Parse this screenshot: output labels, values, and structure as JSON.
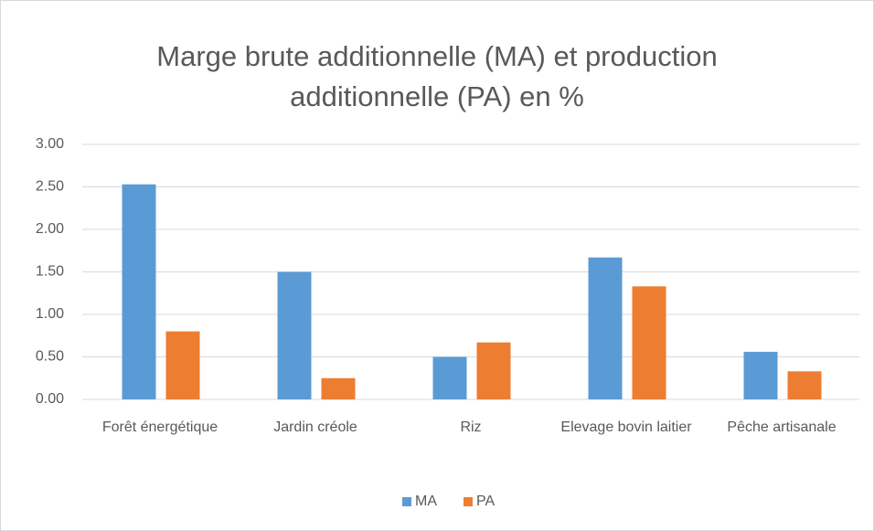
{
  "chart_data": {
    "type": "bar",
    "title": "Marge brute additionnelle (MA) et production additionnelle (PA) en %",
    "categories": [
      "Forêt énergétique",
      "Jardin créole",
      "Riz",
      "Elevage bovin laitier",
      "Pêche artisanale"
    ],
    "series": [
      {
        "name": "MA",
        "color": "#5b9bd5",
        "values": [
          2.53,
          1.5,
          0.5,
          1.67,
          0.56
        ]
      },
      {
        "name": "PA",
        "color": "#ed7d31",
        "values": [
          0.8,
          0.25,
          0.67,
          1.33,
          0.33
        ]
      }
    ],
    "ylim": [
      0,
      3
    ],
    "yticks": [
      {
        "value": 0,
        "label": "0.00"
      },
      {
        "value": 0.5,
        "label": "0.50"
      },
      {
        "value": 1,
        "label": "1.00"
      },
      {
        "value": 1.5,
        "label": "1.50"
      },
      {
        "value": 2,
        "label": "2.00"
      },
      {
        "value": 2.5,
        "label": "2.50"
      },
      {
        "value": 3,
        "label": "3.00"
      }
    ],
    "grid": true,
    "legend": "bottom"
  }
}
